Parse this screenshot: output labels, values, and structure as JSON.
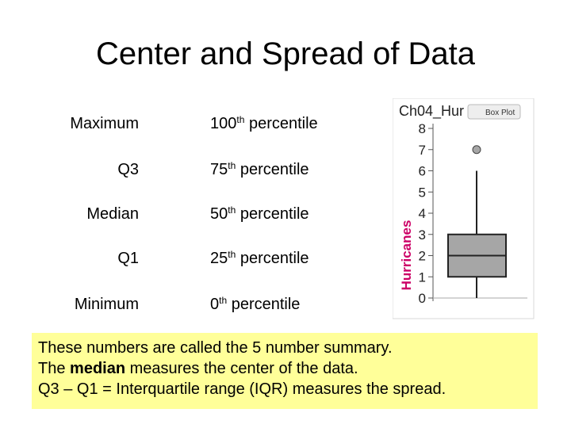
{
  "slide": {
    "title": "Center and Spread of Data"
  },
  "summary_rows": [
    {
      "label": "Maximum",
      "num": "100",
      "suffix": "th",
      "word": "percentile"
    },
    {
      "label": "Q3",
      "num": "75",
      "suffix": "th",
      "word": "percentile"
    },
    {
      "label": "Median",
      "num": "50",
      "suffix": "th",
      "word": "percentile"
    },
    {
      "label": "Q1",
      "num": "25",
      "suffix": "th",
      "word": "percentile"
    },
    {
      "label": "Minimum",
      "num": "0",
      "suffix": "th",
      "word": "percentile"
    }
  ],
  "callout": {
    "line1": "These numbers are called the 5 number summary.",
    "line2_pre": "The ",
    "line2_bold": "median",
    "line2_post": " measures the center of the data.",
    "line3": "Q3 – Q1 = Interquartile range (IQR) measures the spread."
  },
  "chart_data": {
    "type": "box",
    "title": "Ch04_Hur",
    "button_label": "Box Plot",
    "ylabel": "Hurricanes",
    "ylim": [
      0,
      8
    ],
    "yticks": [
      0,
      1,
      2,
      3,
      4,
      5,
      6,
      7,
      8
    ],
    "box": {
      "min": 0,
      "q1": 1,
      "median": 2,
      "q3": 3,
      "whisker_high": 6
    },
    "outliers": [
      7
    ],
    "colors": {
      "box": "#a6a6a6",
      "ylabel": "#cc0066",
      "outlier": "#a6a6a6"
    }
  }
}
